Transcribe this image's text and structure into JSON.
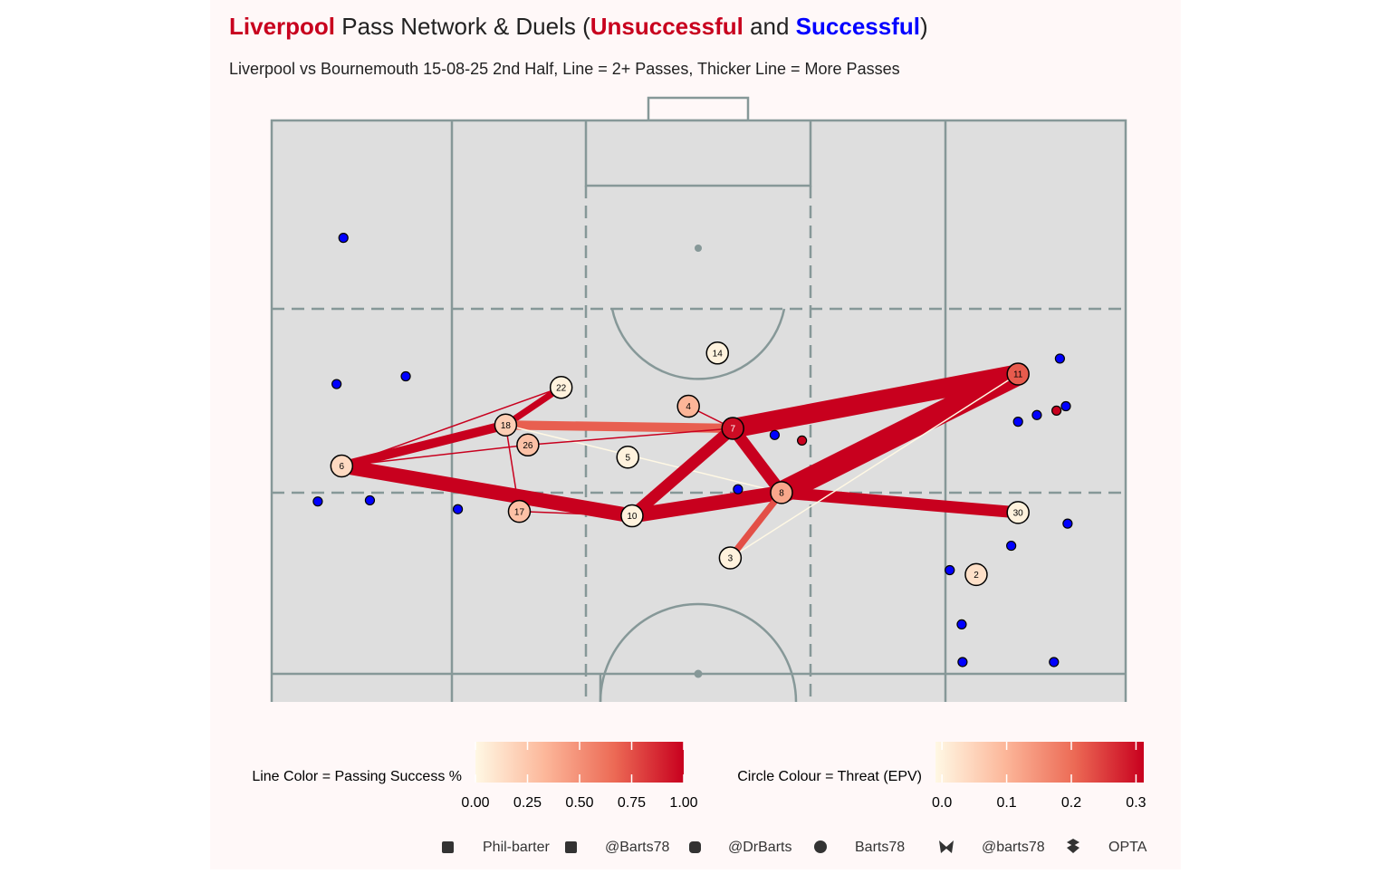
{
  "chart_data": {
    "type": "network",
    "title": {
      "team": "Liverpool",
      "part_1": " Pass Network & Duels (",
      "part_2": " and ",
      "part_3": ")",
      "team_color": "#c8001e"
    },
    "subtitle": "Liverpool vs Bournemouth 15-08-25 2nd Half, Line = 2+ Passes, Thicker Line = More Passes",
    "xlim": [
      0,
      100
    ],
    "ylim": [
      47.5,
      100
    ],
    "colors": [
      "#fff8e4",
      "#fcb79a",
      "#ec6a55",
      "#c8001e"
    ],
    "players": [
      {
        "label": "14",
        "x": 52.2,
        "y": 79.0,
        "epv": 0.0
      },
      {
        "label": "11",
        "x": 87.4,
        "y": 77.1,
        "epv": 0.22
      },
      {
        "label": "22",
        "x": 33.9,
        "y": 75.9,
        "epv": 0.0
      },
      {
        "label": "4",
        "x": 48.8,
        "y": 74.2,
        "epv": 0.1
      },
      {
        "label": "18",
        "x": 27.4,
        "y": 72.5,
        "epv": 0.06
      },
      {
        "label": "7",
        "x": 54.0,
        "y": 72.2,
        "epv": 0.3
      },
      {
        "label": "26",
        "x": 30.0,
        "y": 70.7,
        "epv": 0.08
      },
      {
        "label": "5",
        "x": 41.7,
        "y": 69.6,
        "epv": 0.0
      },
      {
        "label": "6",
        "x": 8.2,
        "y": 68.8,
        "epv": 0.04
      },
      {
        "label": "8",
        "x": 59.7,
        "y": 66.4,
        "epv": 0.12
      },
      {
        "label": "17",
        "x": 29.0,
        "y": 64.7,
        "epv": 0.08
      },
      {
        "label": "10",
        "x": 42.2,
        "y": 64.3,
        "epv": 0.0
      },
      {
        "label": "30",
        "x": 87.4,
        "y": 64.6,
        "epv": 0.0
      },
      {
        "label": "3",
        "x": 53.7,
        "y": 60.5,
        "epv": 0.0
      },
      {
        "label": "2",
        "x": 82.5,
        "y": 59.0,
        "epv": 0.03
      }
    ],
    "passes": [
      {
        "from": "6",
        "to": "18",
        "count": 5,
        "success": 1.0
      },
      {
        "from": "6",
        "to": "22",
        "count": 2,
        "success": 1.0
      },
      {
        "from": "6",
        "to": "26",
        "count": 2,
        "success": 1.0
      },
      {
        "from": "6",
        "to": "10",
        "count": 7,
        "success": 1.0
      },
      {
        "from": "22",
        "to": "18",
        "count": 4,
        "success": 1.0
      },
      {
        "from": "18",
        "to": "7",
        "count": 5,
        "success": 0.7
      },
      {
        "from": "18",
        "to": "17",
        "count": 2,
        "success": 1.0
      },
      {
        "from": "18",
        "to": "8",
        "count": 2,
        "success": 0.0
      },
      {
        "from": "26",
        "to": "7",
        "count": 2,
        "success": 1.0
      },
      {
        "from": "17",
        "to": "10",
        "count": 2,
        "success": 1.0
      },
      {
        "from": "10",
        "to": "7",
        "count": 6,
        "success": 1.0
      },
      {
        "from": "10",
        "to": "8",
        "count": 7,
        "success": 1.0
      },
      {
        "from": "7",
        "to": "4",
        "count": 2,
        "success": 1.0
      },
      {
        "from": "7",
        "to": "11",
        "count": 9,
        "success": 1.0
      },
      {
        "from": "8",
        "to": "11",
        "count": 10,
        "success": 1.0
      },
      {
        "from": "8",
        "to": "30",
        "count": 6,
        "success": 1.0
      },
      {
        "from": "7",
        "to": "8",
        "count": 6,
        "success": 1.0
      },
      {
        "from": "3",
        "to": "8",
        "count": 4,
        "success": 0.75
      },
      {
        "from": "3",
        "to": "11",
        "count": 2,
        "success": 0.0
      }
    ],
    "series": [
      {
        "name": "Unsuccessful",
        "color": "#c8001e",
        "x": [
          62.1,
          91.9
        ],
        "y": [
          71.1,
          73.8
        ]
      },
      {
        "name": "Successful",
        "color": "#0000ff",
        "x": [
          8.4,
          7.6,
          15.7,
          5.4,
          11.5,
          21.8,
          54.6,
          58.9,
          92.3,
          93.0,
          89.6,
          87.4,
          93.2,
          86.6,
          79.4,
          80.8,
          80.9,
          91.6
        ],
        "y": [
          89.4,
          76.2,
          76.9,
          65.6,
          65.7,
          64.9,
          66.7,
          71.6,
          78.5,
          74.2,
          73.4,
          72.8,
          63.6,
          61.6,
          59.4,
          54.5,
          51.1,
          51.1
        ]
      }
    ],
    "line_legend": {
      "title": "Line Color = Passing Success %",
      "lim": [
        0,
        1
      ],
      "ticks": [
        {
          "value": 0,
          "label": "0.00"
        },
        {
          "value": 0.25,
          "label": "0.25"
        },
        {
          "value": 0.5,
          "label": "0.50"
        },
        {
          "value": 0.75,
          "label": "0.75"
        },
        {
          "value": 1,
          "label": "1.00"
        }
      ]
    },
    "circle_legend": {
      "title": "Circle Colour = Threat (EPV)",
      "lim": [
        -0.01,
        0.312
      ],
      "ticks": [
        {
          "value": 0,
          "label": "0.0"
        },
        0.1,
        0.2,
        0.3
      ]
    },
    "footer": [
      "Phil-barter",
      "@Barts78",
      "@DrBarts",
      "Barts78",
      "@barts78",
      "OPTA"
    ]
  }
}
